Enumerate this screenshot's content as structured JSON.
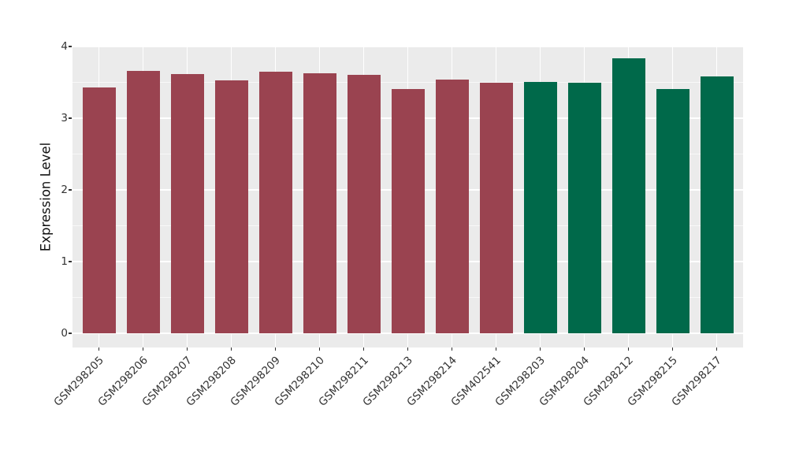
{
  "chart_data": {
    "type": "bar",
    "title": "",
    "xlabel": "",
    "ylabel": "Expression Level",
    "ylim": [
      0,
      4
    ],
    "yticks": [
      0,
      1,
      2,
      3,
      4
    ],
    "y_minor_ticks": [
      0.5,
      1.5,
      2.5,
      3.5
    ],
    "grid": "on",
    "legend": "none",
    "categories": [
      "GSM298205",
      "GSM298206",
      "GSM298207",
      "GSM298208",
      "GSM298209",
      "GSM298210",
      "GSM298211",
      "GSM298213",
      "GSM298214",
      "GSM402541",
      "GSM298203",
      "GSM298204",
      "GSM298212",
      "GSM298215",
      "GSM298217"
    ],
    "values": [
      3.43,
      3.66,
      3.61,
      3.53,
      3.65,
      3.63,
      3.6,
      3.41,
      3.54,
      3.5,
      3.51,
      3.5,
      3.83,
      3.41,
      3.58
    ],
    "bar_colors": [
      "#9a4350",
      "#9a4350",
      "#9a4350",
      "#9a4350",
      "#9a4350",
      "#9a4350",
      "#9a4350",
      "#9a4350",
      "#9a4350",
      "#9a4350",
      "#00694a",
      "#00694a",
      "#00694a",
      "#00694a",
      "#00694a"
    ]
  },
  "style": {
    "background": "#ffffff",
    "panel_background": "#ebebeb",
    "gridline_color": "#ffffff",
    "tick_color": "#333333",
    "tick_label_color": "#333333",
    "axis_title_color": "#111111",
    "group_red": "#9a4350",
    "group_green": "#00694a"
  }
}
